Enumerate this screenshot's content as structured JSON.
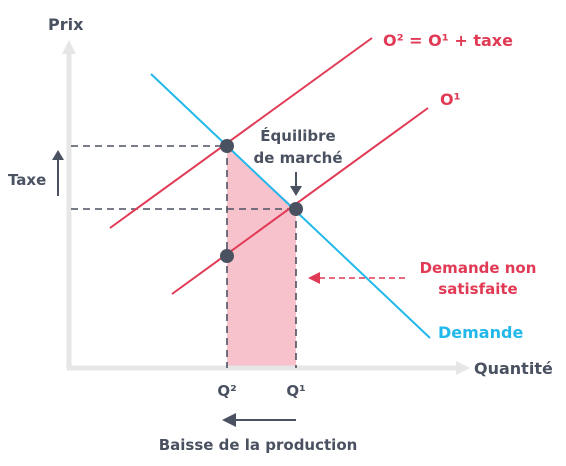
{
  "axes": {
    "y_label": "Prix",
    "x_label": "Quantité",
    "tax_label": "Taxe"
  },
  "curves": {
    "supply_taxed": "O² = O¹ + taxe",
    "supply": "O¹",
    "demand": "Demande"
  },
  "annotations": {
    "equilibrium_line1": "Équilibre",
    "equilibrium_line2": "de marché",
    "unmet_demand_line1": "Demande non",
    "unmet_demand_line2": "satisfaite",
    "production_drop": "Baisse de la production"
  },
  "ticks": {
    "q2": "Q²",
    "q1": "Q¹"
  },
  "colors": {
    "axis": "#e6e6e6",
    "supply": "#e03a55",
    "demand": "#22b8ea",
    "shade": "#f7c2cc",
    "text": "#4a5160",
    "point": "#4a5160"
  }
}
